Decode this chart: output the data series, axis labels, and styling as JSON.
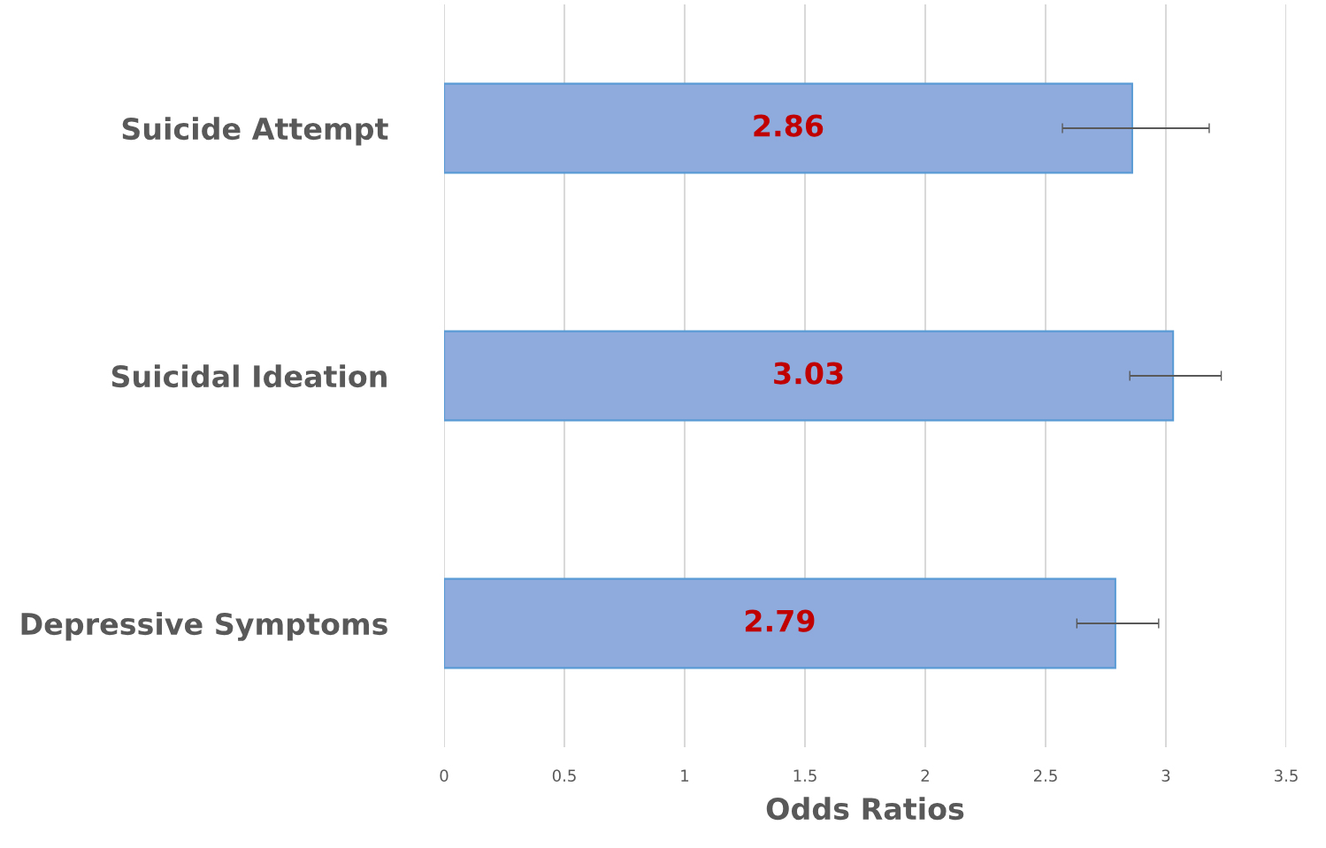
{
  "chart_data": {
    "type": "bar",
    "orientation": "horizontal",
    "categories": [
      "Suicide Attempt",
      "Suicidal Ideation",
      "Depressive Symptoms"
    ],
    "values": [
      2.86,
      3.03,
      2.79
    ],
    "errors": [
      [
        2.57,
        3.18
      ],
      [
        2.85,
        3.23
      ],
      [
        2.63,
        2.97
      ]
    ],
    "color": "#8faadc",
    "xlabel": "Odds Ratios",
    "xlim": [
      0,
      3.5
    ],
    "xticks": [
      0,
      0.5,
      1,
      1.5,
      2,
      2.5,
      3,
      3.5
    ],
    "grid": "x",
    "data_labels": true
  }
}
